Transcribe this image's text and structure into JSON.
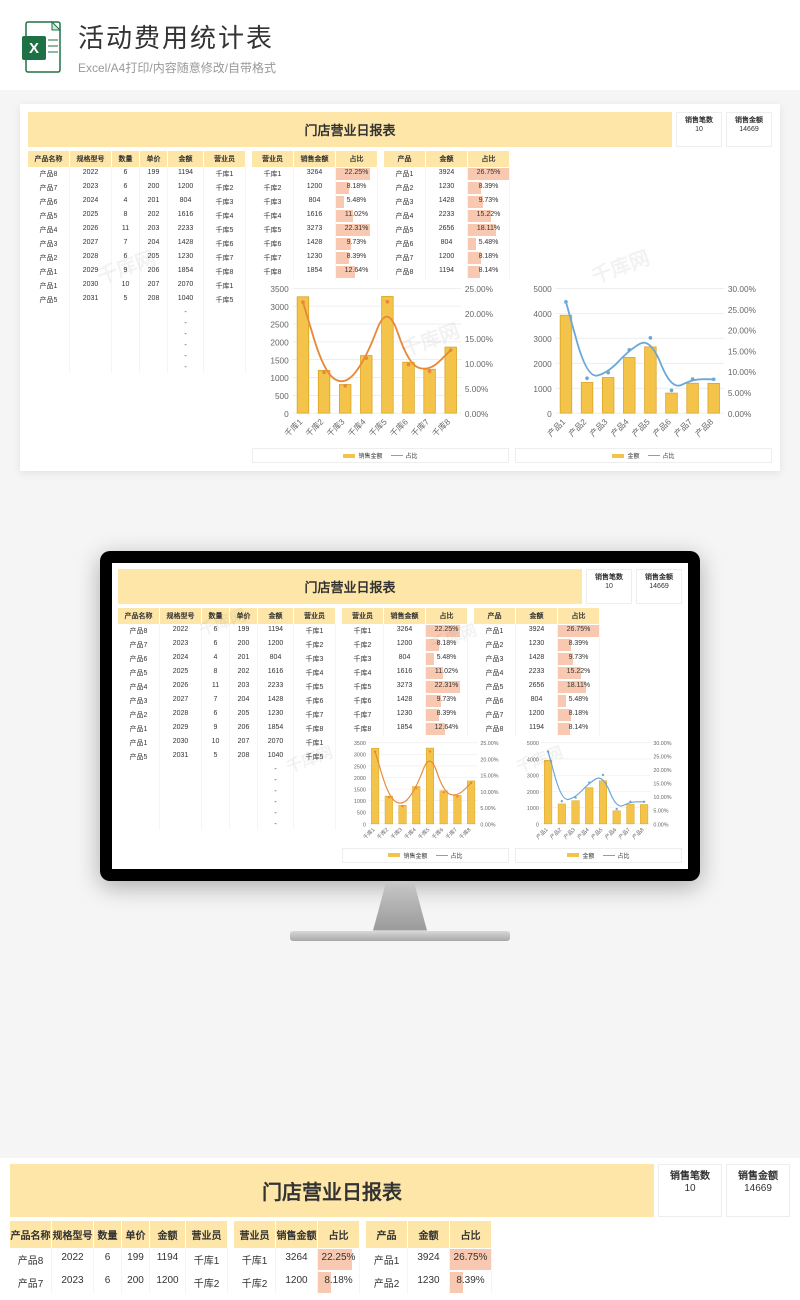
{
  "page_header": {
    "title": "活动费用统计表",
    "subtitle": "Excel/A4打印/内容随意修改/自带格式"
  },
  "report": {
    "title": "门店营业日报表",
    "summary": [
      {
        "label": "销售笔数",
        "value": "10"
      },
      {
        "label": "销售金额",
        "value": "14669"
      }
    ],
    "columns_left": [
      "产品名称",
      "规格型号",
      "数量",
      "单价",
      "金额",
      "营业员"
    ],
    "columns_mid": [
      "营业员",
      "销售金额",
      "占比"
    ],
    "columns_right": [
      "产品",
      "金额",
      "占比"
    ],
    "col_widths_left": [
      42,
      42,
      28,
      28,
      36,
      42
    ],
    "col_widths_mid": [
      42,
      42,
      42
    ],
    "col_widths_right": [
      42,
      42,
      42
    ],
    "gap_width": 6,
    "rows_left": [
      [
        "产品8",
        "2022",
        "6",
        "199",
        "1194",
        "千库1"
      ],
      [
        "产品7",
        "2023",
        "6",
        "200",
        "1200",
        "千库2"
      ],
      [
        "产品6",
        "2024",
        "4",
        "201",
        "804",
        "千库3"
      ],
      [
        "产品5",
        "2025",
        "8",
        "202",
        "1616",
        "千库4"
      ],
      [
        "产品4",
        "2026",
        "11",
        "203",
        "2233",
        "千库5"
      ],
      [
        "产品3",
        "2027",
        "7",
        "204",
        "1428",
        "千库6"
      ],
      [
        "产品2",
        "2028",
        "6",
        "205",
        "1230",
        "千库7"
      ],
      [
        "产品1",
        "2029",
        "9",
        "206",
        "1854",
        "千库8"
      ],
      [
        "产品1",
        "2030",
        "10",
        "207",
        "2070",
        "千库1"
      ],
      [
        "产品5",
        "2031",
        "5",
        "208",
        "1040",
        "千库5"
      ],
      [
        "",
        "",
        "",
        "",
        "-",
        ""
      ],
      [
        "",
        "",
        "",
        "",
        "-",
        ""
      ],
      [
        "",
        "",
        "",
        "",
        "-",
        ""
      ],
      [
        "",
        "",
        "",
        "",
        "-",
        ""
      ],
      [
        "",
        "",
        "",
        "",
        "-",
        ""
      ],
      [
        "",
        "",
        "",
        "",
        "-",
        ""
      ]
    ],
    "rows_mid": [
      [
        "千库1",
        "3264",
        "22.25%",
        0.2225
      ],
      [
        "千库2",
        "1200",
        "8.18%",
        0.0818
      ],
      [
        "千库3",
        "804",
        "5.48%",
        0.0548
      ],
      [
        "千库4",
        "1616",
        "11.02%",
        0.1102
      ],
      [
        "千库5",
        "3273",
        "22.31%",
        0.2231
      ],
      [
        "千库6",
        "1428",
        "9.73%",
        0.0973
      ],
      [
        "千库7",
        "1230",
        "8.39%",
        0.0839
      ],
      [
        "千库8",
        "1854",
        "12.64%",
        0.1264
      ]
    ],
    "rows_right": [
      [
        "产品1",
        "3924",
        "26.75%",
        0.2675
      ],
      [
        "产品2",
        "1230",
        "8.39%",
        0.0839
      ],
      [
        "产品3",
        "1428",
        "9.73%",
        0.0973
      ],
      [
        "产品4",
        "2233",
        "15.22%",
        0.1522
      ],
      [
        "产品5",
        "2656",
        "18.11%",
        0.1811
      ],
      [
        "产品6",
        "804",
        "5.48%",
        0.0548
      ],
      [
        "产品7",
        "1200",
        "8.18%",
        0.0818
      ],
      [
        "产品8",
        "1194",
        "8.14%",
        0.0814
      ]
    ],
    "max_pct": 0.2675
  },
  "chart1": {
    "type": "bar+line",
    "categories": [
      "千库1",
      "千库2",
      "千库3",
      "千库4",
      "千库5",
      "千库6",
      "千库7",
      "千库8"
    ],
    "bars": [
      3264,
      1200,
      804,
      1616,
      3273,
      1428,
      1230,
      1854
    ],
    "line": [
      22.25,
      8.18,
      5.48,
      11.02,
      22.31,
      9.73,
      8.39,
      12.64
    ],
    "y_left_max": 3500,
    "y_left_step": 500,
    "y_right_max": 25.0,
    "y_right_step": 5.0,
    "bar_color": "#f4c44a",
    "bar_border": "#d8a020",
    "line_color": "#e8893a",
    "grid_color": "#e8e8e8",
    "bg": "#ffffff",
    "legend": [
      {
        "label": "销售金额",
        "color": "#f4c44a",
        "type": "bar"
      },
      {
        "label": "占比",
        "color": "#e8893a",
        "type": "line"
      }
    ]
  },
  "chart2": {
    "type": "bar+line",
    "categories": [
      "产品1",
      "产品2",
      "产品3",
      "产品4",
      "产品5",
      "产品6",
      "产品7",
      "产品8"
    ],
    "bars": [
      3924,
      1230,
      1428,
      2233,
      2656,
      804,
      1200,
      1194
    ],
    "line": [
      26.75,
      8.39,
      9.73,
      15.22,
      18.11,
      5.48,
      8.18,
      8.14
    ],
    "y_left_max": 5000,
    "y_left_step": 1000,
    "y_right_max": 30.0,
    "y_right_step": 5.0,
    "bar_color": "#f4c44a",
    "bar_border": "#d8a020",
    "line_color": "#6aa8d8",
    "grid_color": "#e8e8e8",
    "bg": "#ffffff",
    "legend": [
      {
        "label": "金额",
        "color": "#f4c44a",
        "type": "bar"
      },
      {
        "label": "占比",
        "color": "#6aa8d8",
        "type": "line"
      }
    ]
  },
  "watermark": "千库网"
}
